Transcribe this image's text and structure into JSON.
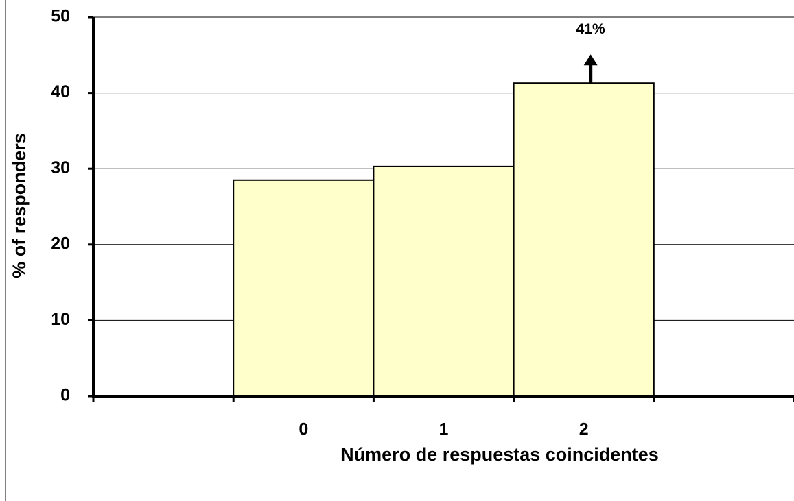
{
  "chart_data": {
    "type": "bar",
    "x_label": "Número de respuestas coincidentes",
    "y_label": "% of responders",
    "categories": [
      null,
      "0",
      "1",
      "2",
      null
    ],
    "values": [
      null,
      28.5,
      30.3,
      41.3,
      null
    ],
    "value_labels": [
      null,
      null,
      null,
      "41%",
      null
    ],
    "color": "#ffffcc",
    "ylim": [
      0,
      50
    ],
    "yticks": [
      0,
      10,
      20,
      30,
      40,
      50
    ],
    "grid": true
  }
}
